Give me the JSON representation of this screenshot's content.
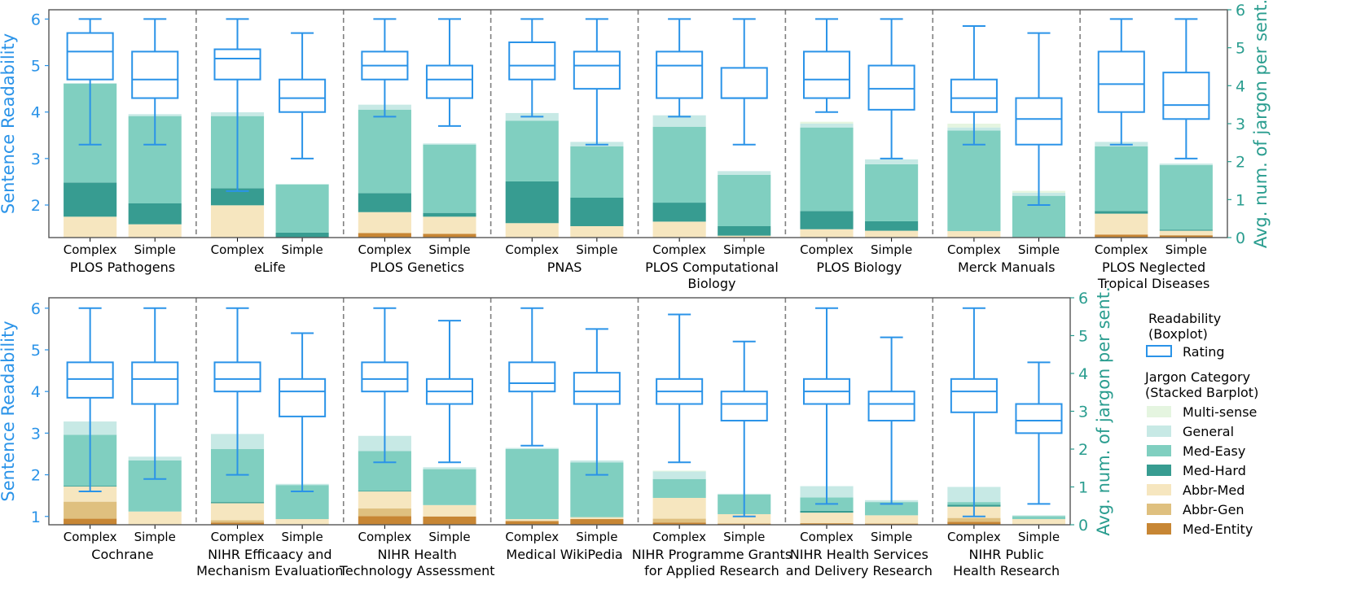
{
  "colors": {
    "box": "#2a93e8",
    "right_axis": "#2a9d8f",
    "Multi-sense": "#e5f5e0",
    "General": "#c7e9e5",
    "Med-Easy": "#80cfc0",
    "Med-Hard": "#379c91",
    "Abbr-Med": "#f6e6bf",
    "Abbr-Gen": "#dfc07f",
    "Med-Entity": "#c78634"
  },
  "chart_data": {
    "type": "bar",
    "description_of_encoding": "Each panel: boxplot of sentence readability (left axis 1-6 scale) overlaid on stacked bar of average jargon count per sentence (right axis 0-6).",
    "left_axis_label": "Sentence Readability",
    "right_axis_label": "Avg. num. of jargon per sent.",
    "left_ticks": [
      "1",
      "2",
      "3",
      "4",
      "5",
      "6"
    ],
    "right_ticks": [
      "0",
      "1",
      "2",
      "3",
      "4",
      "5",
      "6"
    ],
    "categories": [
      "Complex",
      "Simple"
    ],
    "stack_order": [
      "Med-Entity",
      "Abbr-Gen",
      "Abbr-Med",
      "Med-Hard",
      "Med-Easy",
      "General",
      "Multi-sense"
    ],
    "legend": {
      "readability_title": "Readability\n(Boxplot)",
      "readability_item": "Rating",
      "jargon_title": "Jargon Category\n(Stacked Barplot)",
      "jargon_items": [
        "Multi-sense",
        "General",
        "Med-Easy",
        "Med-Hard",
        "Abbr-Med",
        "Abbr-Gen",
        "Med-Entity"
      ]
    },
    "rows": [
      {
        "left_ylim": [
          1.3,
          6.2
        ],
        "right_ylim": [
          0,
          6
        ],
        "panels": [
          {
            "name": "PLOS Pathogens",
            "title_lines": [
              "PLOS Pathogens"
            ],
            "box": {
              "Complex": {
                "wlo": 3.3,
                "q1": 4.7,
                "med": 5.3,
                "q3": 5.7,
                "whi": 6.0
              },
              "Simple": {
                "wlo": 3.3,
                "q1": 4.3,
                "med": 4.7,
                "q3": 5.3,
                "whi": 6.0
              }
            },
            "bars": {
              "Complex": {
                "Med-Entity": 0.0,
                "Abbr-Gen": 0.0,
                "Abbr-Med": 0.55,
                "Med-Hard": 0.9,
                "Med-Easy": 2.6,
                "General": 0.02,
                "Multi-sense": 0.0
              },
              "Simple": {
                "Med-Entity": 0.0,
                "Abbr-Gen": 0.0,
                "Abbr-Med": 0.35,
                "Med-Hard": 0.55,
                "Med-Easy": 2.3,
                "General": 0.05,
                "Multi-sense": 0.0
              }
            }
          },
          {
            "name": "eLife",
            "title_lines": [
              "eLife"
            ],
            "box": {
              "Complex": {
                "wlo": 2.3,
                "q1": 4.7,
                "med": 5.15,
                "q3": 5.35,
                "whi": 6.0
              },
              "Simple": {
                "wlo": 3.0,
                "q1": 4.0,
                "med": 4.3,
                "q3": 4.7,
                "whi": 5.7
              }
            },
            "bars": {
              "Complex": {
                "Med-Entity": 0.0,
                "Abbr-Gen": 0.0,
                "Abbr-Med": 0.85,
                "Med-Hard": 0.45,
                "Med-Easy": 1.9,
                "General": 0.1,
                "Multi-sense": 0.0
              },
              "Simple": {
                "Med-Entity": 0.0,
                "Abbr-Gen": 0.0,
                "Abbr-Med": 0.0,
                "Med-Hard": 0.13,
                "Med-Easy": 1.27,
                "General": 0.01,
                "Multi-sense": 0.0
              }
            }
          },
          {
            "name": "PLOS Genetics",
            "title_lines": [
              "PLOS Genetics"
            ],
            "box": {
              "Complex": {
                "wlo": 3.9,
                "q1": 4.7,
                "med": 5.0,
                "q3": 5.3,
                "whi": 6.0
              },
              "Simple": {
                "wlo": 3.7,
                "q1": 4.3,
                "med": 4.7,
                "q3": 5.0,
                "whi": 6.0
              }
            },
            "bars": {
              "Complex": {
                "Med-Entity": 0.12,
                "Abbr-Gen": 0.0,
                "Abbr-Med": 0.55,
                "Med-Hard": 0.5,
                "Med-Easy": 2.2,
                "General": 0.13,
                "Multi-sense": 0.0
              },
              "Simple": {
                "Med-Entity": 0.1,
                "Abbr-Gen": 0.0,
                "Abbr-Med": 0.45,
                "Med-Hard": 0.1,
                "Med-Easy": 1.8,
                "General": 0.03,
                "Multi-sense": 0.0
              }
            }
          },
          {
            "name": "PNAS",
            "title_lines": [
              "PNAS"
            ],
            "box": {
              "Complex": {
                "wlo": 3.9,
                "q1": 4.7,
                "med": 5.0,
                "q3": 5.5,
                "whi": 6.0
              },
              "Simple": {
                "wlo": 3.3,
                "q1": 4.5,
                "med": 5.0,
                "q3": 5.3,
                "whi": 6.0
              }
            },
            "bars": {
              "Complex": {
                "Med-Entity": 0.0,
                "Abbr-Gen": 0.0,
                "Abbr-Med": 0.38,
                "Med-Hard": 1.1,
                "Med-Easy": 1.6,
                "General": 0.2,
                "Multi-sense": 0.0
              },
              "Simple": {
                "Med-Entity": 0.0,
                "Abbr-Gen": 0.0,
                "Abbr-Med": 0.3,
                "Med-Hard": 0.75,
                "Med-Easy": 1.35,
                "General": 0.12,
                "Multi-sense": 0.0
              }
            }
          },
          {
            "name": "PLOS Computational Biology",
            "title_lines": [
              "PLOS Computational",
              "Biology"
            ],
            "box": {
              "Complex": {
                "wlo": 3.9,
                "q1": 4.3,
                "med": 5.0,
                "q3": 5.3,
                "whi": 6.0
              },
              "Simple": {
                "wlo": 3.3,
                "q1": 4.3,
                "med": 4.3,
                "q3": 4.95,
                "whi": 6.0
              }
            },
            "bars": {
              "Complex": {
                "Med-Entity": 0.0,
                "Abbr-Gen": 0.0,
                "Abbr-Med": 0.42,
                "Med-Hard": 0.5,
                "Med-Easy": 2.0,
                "General": 0.3,
                "Multi-sense": 0.0
              },
              "Simple": {
                "Med-Entity": 0.0,
                "Abbr-Gen": 0.0,
                "Abbr-Med": 0.05,
                "Med-Hard": 0.25,
                "Med-Easy": 1.35,
                "General": 0.1,
                "Multi-sense": 0.0
              }
            }
          },
          {
            "name": "PLOS Biology",
            "title_lines": [
              "PLOS Biology"
            ],
            "box": {
              "Complex": {
                "wlo": 4.0,
                "q1": 4.3,
                "med": 4.7,
                "q3": 5.3,
                "whi": 6.0
              },
              "Simple": {
                "wlo": 3.0,
                "q1": 4.05,
                "med": 4.5,
                "q3": 5.0,
                "whi": 6.0
              }
            },
            "bars": {
              "Complex": {
                "Med-Entity": 0.0,
                "Abbr-Gen": 0.0,
                "Abbr-Med": 0.22,
                "Med-Hard": 0.48,
                "Med-Easy": 2.2,
                "General": 0.1,
                "Multi-sense": 0.05
              },
              "Simple": {
                "Med-Entity": 0.0,
                "Abbr-Gen": 0.0,
                "Abbr-Med": 0.18,
                "Med-Hard": 0.25,
                "Med-Easy": 1.5,
                "General": 0.13,
                "Multi-sense": 0.0
              }
            }
          },
          {
            "name": "Merck Manuals",
            "title_lines": [
              "Merck Manuals"
            ],
            "box": {
              "Complex": {
                "wlo": 3.3,
                "q1": 4.0,
                "med": 4.3,
                "q3": 4.7,
                "whi": 5.85
              },
              "Simple": {
                "wlo": 2.0,
                "q1": 3.3,
                "med": 3.85,
                "q3": 4.3,
                "whi": 5.7
              }
            },
            "bars": {
              "Complex": {
                "Med-Entity": 0.0,
                "Abbr-Gen": 0.0,
                "Abbr-Med": 0.17,
                "Med-Hard": 0.0,
                "Med-Easy": 2.65,
                "General": 0.08,
                "Multi-sense": 0.1
              },
              "Simple": {
                "Med-Entity": 0.0,
                "Abbr-Gen": 0.0,
                "Abbr-Med": 0.0,
                "Med-Hard": 0.0,
                "Med-Easy": 1.1,
                "General": 0.08,
                "Multi-sense": 0.05
              }
            }
          },
          {
            "name": "PLOS Neglected Tropical Diseases",
            "title_lines": [
              "PLOS Neglected",
              "Tropical Diseases"
            ],
            "box": {
              "Complex": {
                "wlo": 3.3,
                "q1": 4.0,
                "med": 4.6,
                "q3": 5.3,
                "whi": 6.0
              },
              "Simple": {
                "wlo": 3.0,
                "q1": 3.85,
                "med": 4.15,
                "q3": 4.85,
                "whi": 6.0
              }
            },
            "bars": {
              "Complex": {
                "Med-Entity": 0.08,
                "Abbr-Gen": 0.0,
                "Abbr-Med": 0.55,
                "Med-Hard": 0.07,
                "Med-Easy": 1.7,
                "General": 0.12,
                "Multi-sense": 0.0
              },
              "Simple": {
                "Med-Entity": 0.06,
                "Abbr-Gen": 0.0,
                "Abbr-Med": 0.12,
                "Med-Hard": 0.03,
                "Med-Easy": 1.7,
                "General": 0.04,
                "Multi-sense": 0.0
              }
            }
          }
        ]
      },
      {
        "left_ylim": [
          0.8,
          6.25
        ],
        "right_ylim": [
          0,
          6
        ],
        "panels": [
          {
            "name": "Cochrane",
            "title_lines": [
              "Cochrane"
            ],
            "box": {
              "Complex": {
                "wlo": 1.6,
                "q1": 3.85,
                "med": 4.3,
                "q3": 4.7,
                "whi": 6.0
              },
              "Simple": {
                "wlo": 1.9,
                "q1": 3.7,
                "med": 4.3,
                "q3": 4.7,
                "whi": 6.0
              }
            },
            "bars": {
              "Complex": {
                "Med-Entity": 0.16,
                "Abbr-Gen": 0.45,
                "Abbr-Med": 0.4,
                "Med-Hard": 0.02,
                "Med-Easy": 1.35,
                "General": 0.35,
                "Multi-sense": 0.0
              },
              "Simple": {
                "Med-Entity": 0.0,
                "Abbr-Gen": 0.0,
                "Abbr-Med": 0.35,
                "Med-Hard": 0.0,
                "Med-Easy": 1.35,
                "General": 0.1,
                "Multi-sense": 0.0
              }
            }
          },
          {
            "name": "NIHR Efficacy and Mechanism Evaluation",
            "title_lines": [
              "NIHR Efficaacy and",
              "Mechanism Evaluation"
            ],
            "box": {
              "Complex": {
                "wlo": 2.0,
                "q1": 4.0,
                "med": 4.3,
                "q3": 4.7,
                "whi": 6.0
              },
              "Simple": {
                "wlo": 1.6,
                "q1": 3.4,
                "med": 4.0,
                "q3": 4.3,
                "whi": 5.4
              }
            },
            "bars": {
              "Complex": {
                "Med-Entity": 0.06,
                "Abbr-Gen": 0.06,
                "Abbr-Med": 0.45,
                "Med-Hard": 0.03,
                "Med-Easy": 1.4,
                "General": 0.4,
                "Multi-sense": 0.0
              },
              "Simple": {
                "Med-Entity": 0.0,
                "Abbr-Gen": 0.0,
                "Abbr-Med": 0.15,
                "Med-Hard": 0.0,
                "Med-Easy": 0.9,
                "General": 0.03,
                "Multi-sense": 0.0
              }
            }
          },
          {
            "name": "NIHR Health Technology Assessment",
            "title_lines": [
              "NIHR Health",
              "Technology Assessment"
            ],
            "box": {
              "Complex": {
                "wlo": 2.3,
                "q1": 4.0,
                "med": 4.3,
                "q3": 4.7,
                "whi": 6.0
              },
              "Simple": {
                "wlo": 2.3,
                "q1": 3.7,
                "med": 4.0,
                "q3": 4.3,
                "whi": 5.7
              }
            },
            "bars": {
              "Complex": {
                "Med-Entity": 0.23,
                "Abbr-Gen": 0.2,
                "Abbr-Med": 0.45,
                "Med-Hard": 0.02,
                "Med-Easy": 1.05,
                "General": 0.4,
                "Multi-sense": 0.0
              },
              "Simple": {
                "Med-Entity": 0.22,
                "Abbr-Gen": 0.0,
                "Abbr-Med": 0.3,
                "Med-Hard": 0.0,
                "Med-Easy": 0.95,
                "General": 0.05,
                "Multi-sense": 0.0
              }
            }
          },
          {
            "name": "Medical WikiPedia",
            "title_lines": [
              "Medical WikiPedia"
            ],
            "box": {
              "Complex": {
                "wlo": 2.7,
                "q1": 4.0,
                "med": 4.2,
                "q3": 4.7,
                "whi": 6.0
              },
              "Simple": {
                "wlo": 2.0,
                "q1": 3.7,
                "med": 4.0,
                "q3": 4.45,
                "whi": 5.5
              }
            },
            "bars": {
              "Complex": {
                "Med-Entity": 0.1,
                "Abbr-Gen": 0.0,
                "Abbr-Med": 0.05,
                "Med-Hard": 0.0,
                "Med-Easy": 1.85,
                "General": 0.03,
                "Multi-sense": 0.0
              },
              "Simple": {
                "Med-Entity": 0.15,
                "Abbr-Gen": 0.0,
                "Abbr-Med": 0.05,
                "Med-Hard": 0.0,
                "Med-Easy": 1.45,
                "General": 0.05,
                "Multi-sense": 0.0
              }
            }
          },
          {
            "name": "NIHR Programme Grants for Applied Research",
            "title_lines": [
              "NIHR Programme Grants",
              "for Applied Research"
            ],
            "box": {
              "Complex": {
                "wlo": 2.3,
                "q1": 3.7,
                "med": 4.0,
                "q3": 4.3,
                "whi": 5.85
              },
              "Simple": {
                "wlo": 1.0,
                "q1": 3.3,
                "med": 3.7,
                "q3": 4.0,
                "whi": 5.2
              }
            },
            "bars": {
              "Complex": {
                "Med-Entity": 0.06,
                "Abbr-Gen": 0.1,
                "Abbr-Med": 0.55,
                "Med-Hard": 0.0,
                "Med-Easy": 0.5,
                "General": 0.2,
                "Multi-sense": 0.02
              },
              "Simple": {
                "Med-Entity": 0.03,
                "Abbr-Gen": 0.0,
                "Abbr-Med": 0.25,
                "Med-Hard": 0.0,
                "Med-Easy": 0.52,
                "General": 0.02,
                "Multi-sense": 0.0
              }
            }
          },
          {
            "name": "NIHR Health Services and Delivery Research",
            "title_lines": [
              "NIHR Health Services",
              "and Delivery Research"
            ],
            "box": {
              "Complex": {
                "wlo": 1.3,
                "q1": 3.7,
                "med": 4.0,
                "q3": 4.3,
                "whi": 6.0
              },
              "Simple": {
                "wlo": 1.3,
                "q1": 3.3,
                "med": 3.7,
                "q3": 4.0,
                "whi": 5.3
              }
            },
            "bars": {
              "Complex": {
                "Med-Entity": 0.04,
                "Abbr-Gen": 0.0,
                "Abbr-Med": 0.28,
                "Med-Hard": 0.05,
                "Med-Easy": 0.35,
                "General": 0.3,
                "Multi-sense": 0.0
              },
              "Simple": {
                "Med-Entity": 0.03,
                "Abbr-Gen": 0.0,
                "Abbr-Med": 0.22,
                "Med-Hard": 0.0,
                "Med-Easy": 0.35,
                "General": 0.05,
                "Multi-sense": 0.0
              }
            }
          },
          {
            "name": "NIHR Public Health Research",
            "title_lines": [
              "NIHR Public",
              "Health Research"
            ],
            "box": {
              "Complex": {
                "wlo": 1.0,
                "q1": 3.5,
                "med": 4.0,
                "q3": 4.3,
                "whi": 6.0
              },
              "Simple": {
                "wlo": 1.3,
                "q1": 3.0,
                "med": 3.3,
                "q3": 3.7,
                "whi": 4.7
              }
            },
            "bars": {
              "Complex": {
                "Med-Entity": 0.08,
                "Abbr-Gen": 0.1,
                "Abbr-Med": 0.3,
                "Med-Hard": 0.05,
                "Med-Easy": 0.07,
                "General": 0.4,
                "Multi-sense": 0.0
              },
              "Simple": {
                "Med-Entity": 0.0,
                "Abbr-Gen": 0.0,
                "Abbr-Med": 0.15,
                "Med-Hard": 0.0,
                "Med-Easy": 0.08,
                "General": 0.02,
                "Multi-sense": 0.0
              }
            }
          }
        ]
      }
    ]
  }
}
